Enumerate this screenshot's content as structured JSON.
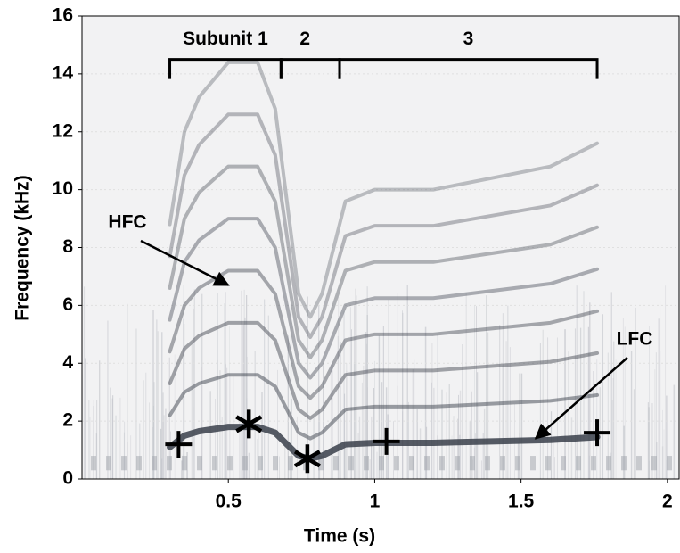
{
  "chart_data": {
    "type": "spectrogram",
    "x_label": "Time (s)",
    "y_label": "Frequency (kHz)",
    "xlim": [
      0,
      2.04
    ],
    "ylim": [
      0,
      16
    ],
    "xticks": [
      0.5,
      1,
      1.5,
      2
    ],
    "yticks": [
      0,
      2,
      4,
      6,
      8,
      10,
      12,
      14,
      16
    ],
    "grid": true,
    "harmonic_count": 8,
    "contour": {
      "color": "#3a3f4a",
      "x": [
        0.3,
        0.35,
        0.4,
        0.5,
        0.6,
        0.66,
        0.7,
        0.74,
        0.78,
        0.82,
        0.86,
        0.9,
        1.0,
        1.2,
        1.4,
        1.6,
        1.76
      ],
      "y": [
        1.1,
        1.5,
        1.65,
        1.8,
        1.8,
        1.6,
        1.2,
        0.8,
        0.7,
        0.8,
        1.0,
        1.2,
        1.25,
        1.25,
        1.3,
        1.35,
        1.45
      ]
    },
    "subunits": [
      {
        "label": "Subunit 1",
        "start": 0.3,
        "end": 0.68
      },
      {
        "label": "2",
        "start": 0.68,
        "end": 0.88
      },
      {
        "label": "3",
        "start": 0.88,
        "end": 1.76
      }
    ],
    "bracket_level": 14.5,
    "plus_markers": {
      "x": [
        0.33,
        1.04,
        1.76
      ],
      "y": [
        1.2,
        1.3,
        1.6
      ]
    },
    "star_markers": {
      "x": [
        0.57,
        0.77
      ],
      "y": [
        1.9,
        0.7
      ]
    },
    "annotations": [
      {
        "text": "HFC",
        "x": 0.5,
        "y": 6.7
      },
      {
        "text": "LFC",
        "x": 1.55,
        "y": 1.4
      }
    ]
  }
}
